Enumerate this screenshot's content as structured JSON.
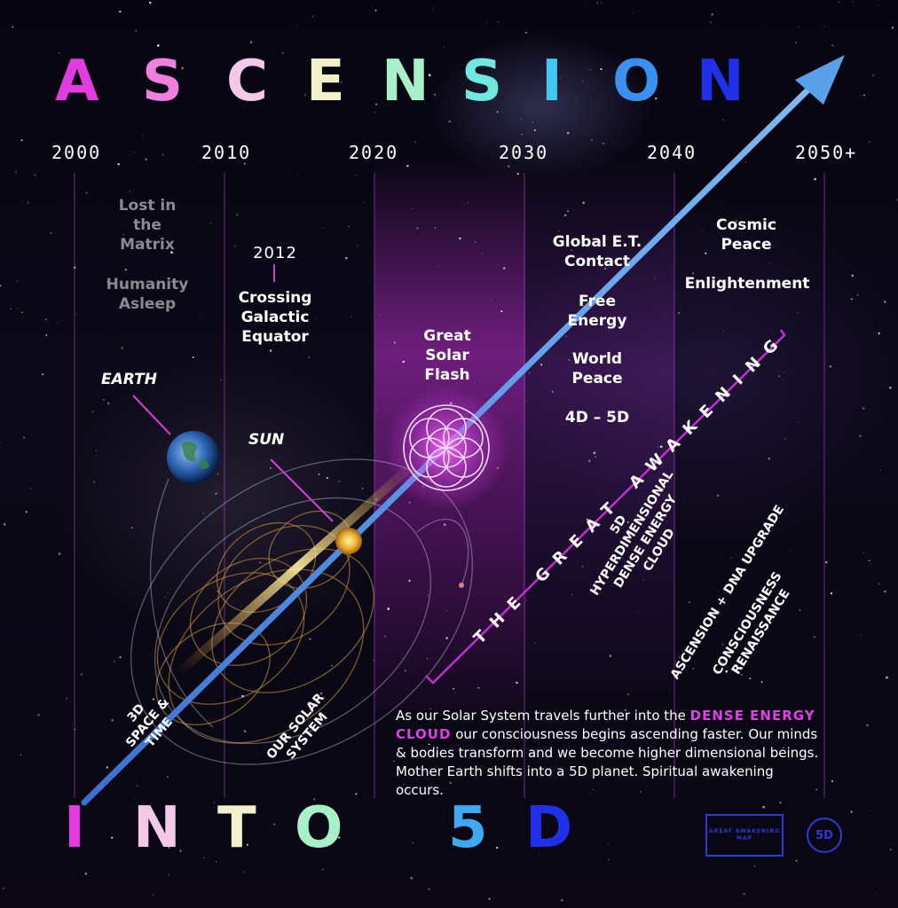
{
  "title_top": [
    "A",
    "S",
    "C",
    "E",
    "N",
    "S",
    "I",
    "O",
    "N"
  ],
  "title_bottom": [
    "I",
    "N",
    "T",
    "O",
    "5",
    "D"
  ],
  "colors": {
    "top": [
      "#e23be0",
      "#f080e0",
      "#f4c8e8",
      "#f2f0c8",
      "#a8f0c8",
      "#70e8e0",
      "#40c8f0",
      "#3890f0",
      "#2030e8"
    ],
    "bottom": [
      "#e23be0",
      "#f4c8e8",
      "#f2f0c8",
      "#a8f0c8",
      "#40a8f0",
      "#2030e8"
    ],
    "accent": "#e040e8",
    "logo": "#2a3bd8"
  },
  "years": [
    "2000",
    "2010",
    "2020",
    "2030",
    "2040",
    "2050+"
  ],
  "labels": {
    "lost_matrix": "Lost in the Matrix",
    "humanity_asleep": "Humanity Asleep",
    "year_2012": "2012",
    "crossing": "Crossing Galactic Equator",
    "earth": "EARTH",
    "sun": "SUN",
    "solar_flash": "Great Solar Flash",
    "et_contact": "Global E.T. Contact",
    "free_energy": "Free Energy",
    "world_peace": "World Peace",
    "dims": "4D – 5D",
    "cosmic_peace": "Cosmic Peace",
    "enlightenment": "Enlightenment",
    "great_awakening": "THE GREAT AWAKENING",
    "hyper_5d": "5D",
    "hyper": "HYPERDIMENSIONAL",
    "dense_energy": "DENSE ENERGY",
    "cloud": "CLOUD",
    "ascension_dna": "ASCENSION + DNA UPGRADE",
    "consciousness": "CONSCIOUSNESS",
    "renaissance": "RENAISSANCE",
    "space_3d": "3D",
    "space_time": "SPACE &",
    "time": "TIME",
    "our_solar": "OUR SOLAR",
    "system": "SYSTEM"
  },
  "description": {
    "part1": "As our Solar System travels further into the ",
    "highlight": "DENSE ENERGY CLOUD",
    "part2": " our consciousness begins ascending faster. Our minds & bodies transform and we become higher dimensional beings. Mother Earth shifts into a 5D planet. Spiritual awakening occurs."
  },
  "logo": {
    "box": "GREAT AWAKENING MAP",
    "circle": "5D"
  }
}
